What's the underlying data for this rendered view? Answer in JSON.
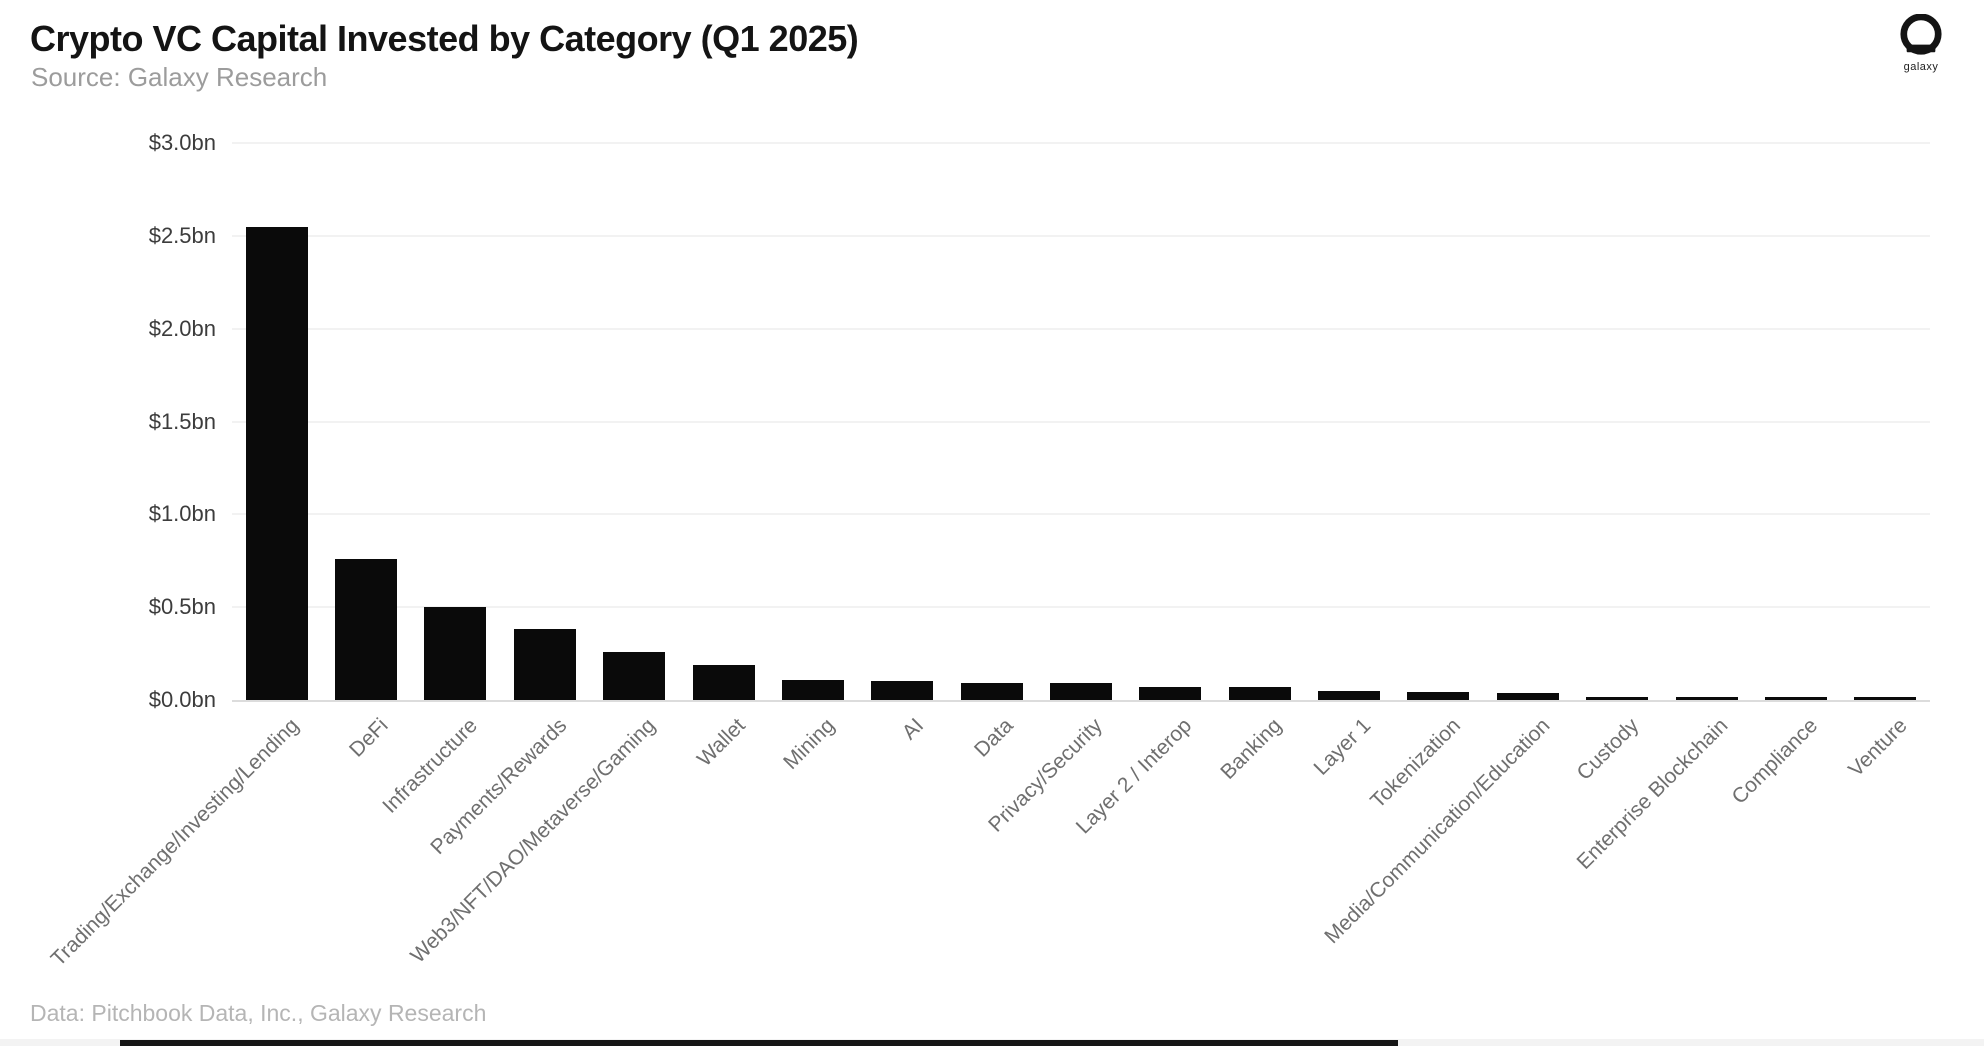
{
  "header": {
    "source": "Source: Galaxy Research",
    "logo_wordmark": "galaxy"
  },
  "footer": {
    "credit": "Data: Pitchbook Data, Inc., Galaxy Research"
  },
  "colors": {
    "bar": "#0a0a0a",
    "grid": "#f2f2f2",
    "axis_line": "#dcdcdc",
    "title": "#141414",
    "subtitle": "#9c9c9c",
    "y_tick": "#3c3c3c",
    "x_label": "#6f6f6f",
    "credit": "#b5b5b5",
    "progress_bar": "#161616"
  },
  "chart_data": {
    "type": "bar",
    "title": "Crypto VC Capital Invested by Category (Q1 2025)",
    "subtitle": "Source: Galaxy Research",
    "unit": "USD billions",
    "xlabel": "",
    "ylabel": "",
    "ylim": [
      0,
      3.0
    ],
    "grid": "horizontal",
    "legend": "none",
    "bar_color": "#0a0a0a",
    "categories": [
      "Trading/Exchange/Investing/Lending",
      "DeFi",
      "Infrastructure",
      "Payments/Rewards",
      "Web3/NFT/DAO/Metaverse/Gaming",
      "Wallet",
      "Mining",
      "AI",
      "Data",
      "Privacy/Security",
      "Layer 2 / Interop",
      "Banking",
      "Layer 1",
      "Tokenization",
      "Media/Communication/Education",
      "Custody",
      "Enterprise Blockchain",
      "Compliance",
      "Venture"
    ],
    "values": [
      2.55,
      0.76,
      0.5,
      0.38,
      0.26,
      0.19,
      0.11,
      0.1,
      0.09,
      0.09,
      0.07,
      0.07,
      0.05,
      0.045,
      0.04,
      0.015,
      0.01,
      0.01,
      0.01
    ],
    "yticks": [
      {
        "value": 3.0,
        "label": "$3.0bn"
      },
      {
        "value": 2.5,
        "label": "$2.5bn"
      },
      {
        "value": 2.0,
        "label": "$2.0bn"
      },
      {
        "value": 1.5,
        "label": "$1.5bn"
      },
      {
        "value": 1.0,
        "label": "$1.0bn"
      },
      {
        "value": 0.5,
        "label": "$0.5bn"
      },
      {
        "value": 0.0,
        "label": "$0.0bn"
      }
    ]
  }
}
